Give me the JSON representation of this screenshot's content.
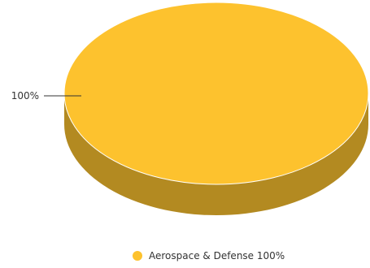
{
  "chart_data": {
    "type": "pie",
    "style": "3d",
    "categories": [
      "Aerospace & Defense"
    ],
    "values": [
      100
    ],
    "slice_labels": [
      "100%"
    ],
    "legend": {
      "position": "bottom",
      "entries": [
        "Aerospace & Defense 100%"
      ]
    },
    "colors": {
      "top": "#FDC22E",
      "side": "#B38A21",
      "leader_line": "#333333",
      "label_text": "#333333",
      "legend_text": "#333333"
    }
  }
}
